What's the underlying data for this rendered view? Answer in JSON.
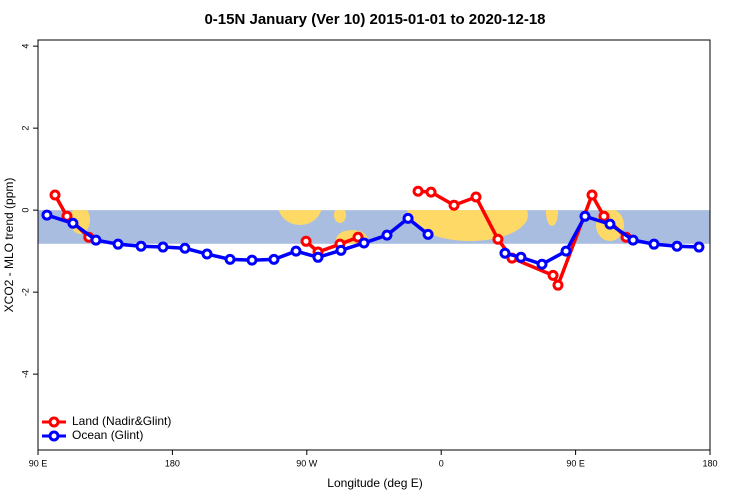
{
  "chart_data": {
    "type": "line",
    "title": "0-15N January (Ver 10)   2015-01-01 to 2020-12-18",
    "x_label": "Longitude (deg E)",
    "y_label": "XCO2 - MLO trend (ppm)",
    "xlim": [
      90,
      540
    ],
    "ylim": [
      -5.85,
      4.15
    ],
    "xticks": [
      {
        "value": 90,
        "label": "90 E"
      },
      180,
      {
        "value": 270,
        "label": "90 W"
      },
      {
        "value": 360,
        "label": "0"
      },
      {
        "value": 450,
        "label": "90 E"
      },
      {
        "value": 540,
        "label": "180"
      }
    ],
    "yticks": [
      -4,
      -2,
      0,
      2,
      4
    ],
    "band": [
      -0.82,
      0
    ],
    "band_color": "#a8bde0",
    "land_color": "#ffd966",
    "legend": "bottom-left",
    "series": [
      {
        "name": "Land (Nadir&Glint)",
        "color": "#ff0000",
        "x": [
          101.4,
          109.4,
          124,
          null,
          269.5,
          277.5,
          292.2,
          304.3,
          null,
          344.5,
          353.2,
          368.6,
          383.3,
          398,
          407.4,
          434.9,
          438.2,
          461,
          469,
          483.8
        ],
        "values": [
          0.37,
          -0.15,
          -0.66,
          null,
          -0.76,
          -1.02,
          -0.83,
          -0.66,
          null,
          0.46,
          0.44,
          0.12,
          0.32,
          -0.71,
          -1.17,
          -1.59,
          -1.83,
          0.37,
          -0.15,
          -0.66
        ]
      },
      {
        "name": "Ocean (Glint)",
        "color": "#0000ff",
        "x": [
          96,
          113.4,
          128.8,
          143.6,
          159,
          173.7,
          188.4,
          203.2,
          218.6,
          233.3,
          248,
          262.8,
          277.5,
          292.9,
          308.3,
          323.7,
          337.8,
          351.2,
          null,
          402.7,
          413.4,
          427.5,
          443.6,
          456.3,
          473,
          488.5,
          502.5,
          517.9,
          532.6
        ],
        "values": [
          -0.12,
          -0.32,
          -0.73,
          -0.83,
          -0.88,
          -0.9,
          -0.93,
          -1.07,
          -1.2,
          -1.22,
          -1.2,
          -1.0,
          -1.15,
          -0.98,
          -0.8,
          -0.61,
          -0.2,
          -0.59,
          null,
          -1.05,
          -1.15,
          -1.32,
          -1.0,
          -0.15,
          -0.34,
          -0.73,
          -0.83,
          -0.88,
          -0.9
        ]
      }
    ]
  }
}
